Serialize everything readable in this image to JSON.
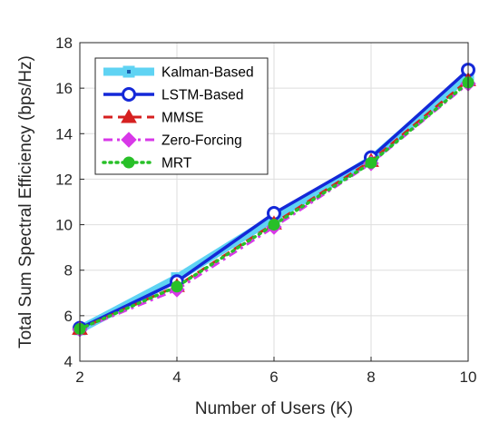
{
  "chart_data": {
    "type": "line",
    "title": "",
    "xlabel": "Number of Users (K)",
    "ylabel": "Total Sum Spectral Efficiency (bps/Hz)",
    "x": [
      2,
      4,
      6,
      8,
      10
    ],
    "xlim": [
      2,
      10
    ],
    "ylim": [
      4,
      18
    ],
    "xticks": [
      2,
      4,
      6,
      8,
      10
    ],
    "yticks": [
      4,
      6,
      8,
      10,
      12,
      14,
      16,
      18
    ],
    "grid": true,
    "legend_position": "top-left",
    "series": [
      {
        "name": "Kalman-Based",
        "values": [
          5.4,
          7.65,
          10.3,
          12.85,
          16.6
        ],
        "color": "#5fd3f3",
        "marker": "square",
        "line_style": "solid"
      },
      {
        "name": "LSTM-Based",
        "values": [
          5.45,
          7.5,
          10.5,
          12.95,
          16.8
        ],
        "color": "#1428d8",
        "marker": "circle",
        "line_style": "solid"
      },
      {
        "name": "MMSE",
        "values": [
          5.42,
          7.3,
          10.05,
          12.8,
          16.35
        ],
        "color": "#d62020",
        "marker": "triangle",
        "line_style": "dashed"
      },
      {
        "name": "Zero-Forcing",
        "values": [
          5.4,
          7.15,
          9.9,
          12.7,
          16.2
        ],
        "color": "#d838e8",
        "marker": "diamond",
        "line_style": "dashdot"
      },
      {
        "name": "MRT",
        "values": [
          5.42,
          7.28,
          10.0,
          12.72,
          16.25
        ],
        "color": "#28c028",
        "marker": "circle",
        "line_style": "dotted"
      }
    ]
  }
}
